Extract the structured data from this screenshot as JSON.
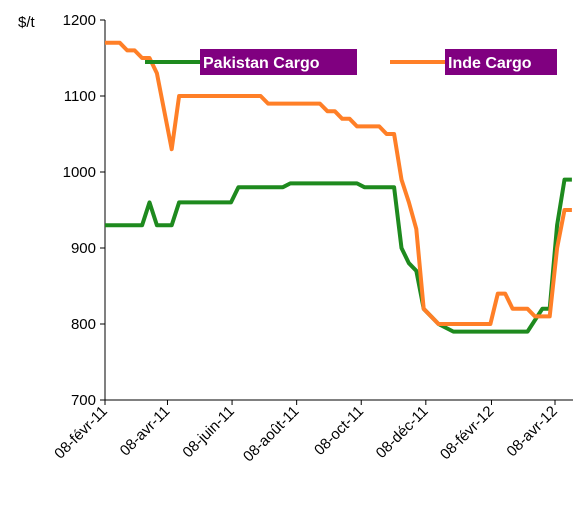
{
  "chart_data": {
    "type": "line",
    "y_label": "$/t",
    "ylim": [
      700,
      1200
    ],
    "yticks": [
      700,
      800,
      900,
      1000,
      1100,
      1200
    ],
    "xlim": [
      "2011-02-08",
      "2012-04-25"
    ],
    "xticks": [
      {
        "value": "2011-02-08",
        "label": "08-févr-11"
      },
      {
        "value": "2011-04-08",
        "label": "08-avr-11"
      },
      {
        "value": "2011-06-08",
        "label": "08-juin-11"
      },
      {
        "value": "2011-08-08",
        "label": "08-août-11"
      },
      {
        "value": "2011-10-08",
        "label": "08-oct-11"
      },
      {
        "value": "2011-12-08",
        "label": "08-déc-11"
      },
      {
        "value": "2012-02-08",
        "label": "08-févr-12"
      },
      {
        "value": "2012-04-08",
        "label": "08-avr-12"
      }
    ],
    "legend": "top",
    "series": [
      {
        "name": "Pakistan Cargo",
        "color": "#1e8a1e",
        "x": [
          "2011-02-08",
          "2011-03-15",
          "2011-03-22",
          "2011-03-29",
          "2011-04-12",
          "2011-04-19",
          "2011-06-07",
          "2011-06-14",
          "2011-07-26",
          "2011-08-02",
          "2011-10-04",
          "2011-10-11",
          "2011-11-08",
          "2011-11-15",
          "2011-11-22",
          "2011-11-29",
          "2011-12-06",
          "2011-12-20",
          "2012-01-03",
          "2012-03-13",
          "2012-03-27",
          "2012-04-03",
          "2012-04-10",
          "2012-04-17",
          "2012-04-24"
        ],
        "values": [
          930,
          930,
          960,
          930,
          930,
          960,
          960,
          980,
          980,
          985,
          985,
          980,
          980,
          900,
          880,
          870,
          820,
          800,
          790,
          790,
          820,
          820,
          930,
          990,
          990
        ]
      },
      {
        "name": "Inde Cargo",
        "color": "#ff7f27",
        "x": [
          "2011-02-08",
          "2011-02-22",
          "2011-03-01",
          "2011-03-08",
          "2011-03-15",
          "2011-03-22",
          "2011-03-29",
          "2011-04-05",
          "2011-04-12",
          "2011-04-19",
          "2011-07-05",
          "2011-07-12",
          "2011-08-30",
          "2011-09-06",
          "2011-09-13",
          "2011-09-20",
          "2011-09-27",
          "2011-10-04",
          "2011-10-25",
          "2011-11-01",
          "2011-11-08",
          "2011-11-15",
          "2011-11-22",
          "2011-11-29",
          "2011-12-06",
          "2011-12-20",
          "2012-02-07",
          "2012-02-14",
          "2012-02-21",
          "2012-02-28",
          "2012-03-13",
          "2012-03-20",
          "2012-04-03",
          "2012-04-10",
          "2012-04-17",
          "2012-04-24"
        ],
        "values": [
          1170,
          1170,
          1160,
          1160,
          1150,
          1150,
          1130,
          1080,
          1030,
          1100,
          1100,
          1090,
          1090,
          1080,
          1080,
          1070,
          1070,
          1060,
          1060,
          1050,
          1050,
          990,
          960,
          925,
          820,
          800,
          800,
          840,
          840,
          820,
          820,
          810,
          810,
          900,
          950,
          950
        ]
      }
    ]
  }
}
